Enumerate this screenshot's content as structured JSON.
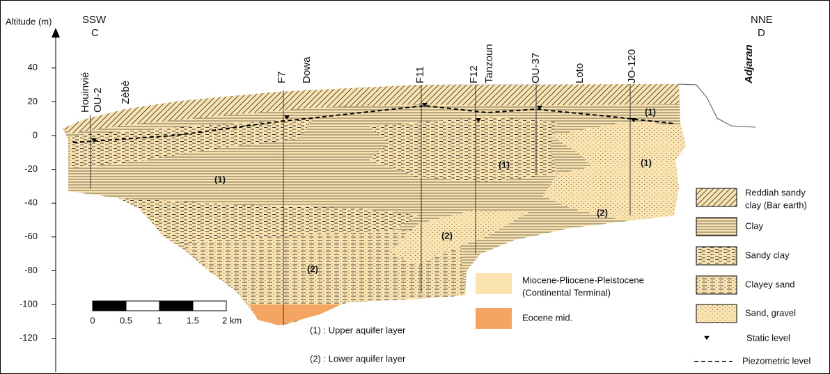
{
  "axis": {
    "label": "Altitude (m)",
    "ticks": [
      40,
      20,
      0,
      -20,
      -40,
      -60,
      -80,
      -100,
      -120
    ]
  },
  "directions": [
    {
      "bearing": "SSW",
      "point": "C"
    },
    {
      "bearing": "NNE",
      "point": "D"
    }
  ],
  "wells": [
    "Houinvié",
    "OU-2",
    "Zèbè",
    "F7",
    "Dowa",
    "F11",
    "F12",
    "Tanzoun",
    "OU-37",
    "Loto",
    "JO-120"
  ],
  "locality": "Adjaran",
  "aquifer_marks": [
    "(1)",
    "(1)",
    "(1)",
    "(1)",
    "(2)",
    "(2)",
    "(2)"
  ],
  "scale_bar": [
    "0",
    "0.5",
    "1",
    "1.5",
    "2 km"
  ],
  "notes": [
    "(1) : Upper aquifer layer",
    "(2) : Lower aquifer layer"
  ],
  "legend": {
    "formations": [
      [
        "Miocene-Pliocene-Pleistocene",
        "(Continental Terminal)"
      ],
      [
        "Eocene mid."
      ]
    ],
    "lithology": [
      [
        "Reddiah sandy",
        "clay (Bar earth)"
      ],
      [
        "Clay"
      ],
      [
        "Sandy clay"
      ],
      [
        "Clayey sand"
      ],
      [
        "Sand, gravel"
      ]
    ],
    "symbols": [
      "Static level",
      "Piezometric level"
    ]
  }
}
